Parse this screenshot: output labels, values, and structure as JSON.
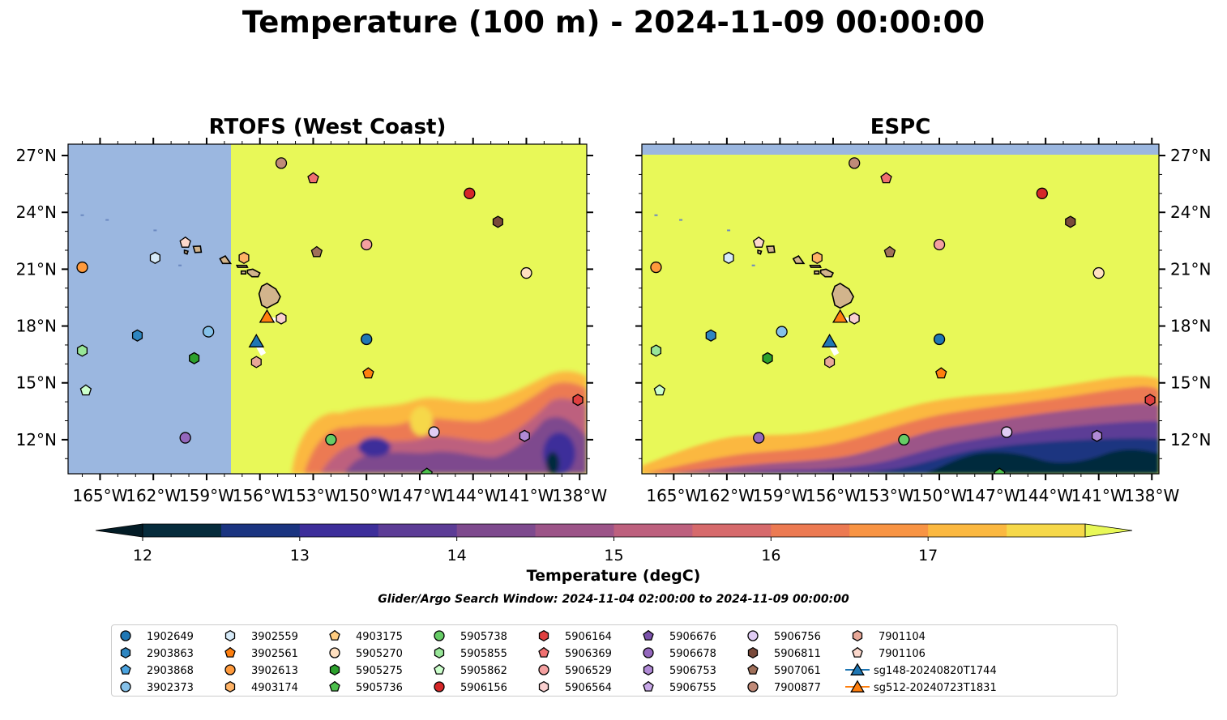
{
  "title": "Temperature (100 m) - 2024-11-09 00:00:00",
  "panels": [
    {
      "title": "RTOFS (West Coast)"
    },
    {
      "title": "ESPC"
    }
  ],
  "colors": {
    "land_mask": "#9bb7e0",
    "warm": "#e8f858",
    "island": "#d2b48c",
    "glider_track": "#ffffff"
  },
  "axes": {
    "lon_ticks": [
      -165,
      -162,
      -159,
      -156,
      -153,
      -150,
      -147,
      -144,
      -141,
      -138
    ],
    "lon_labels": [
      "165°W",
      "162°W",
      "159°W",
      "156°W",
      "153°W",
      "150°W",
      "147°W",
      "144°W",
      "141°W",
      "138°W"
    ],
    "lat_ticks": [
      12,
      15,
      18,
      21,
      24,
      27
    ],
    "lat_labels": [
      "12°N",
      "15°N",
      "18°N",
      "21°N",
      "24°N",
      "27°N"
    ],
    "lon_range": [
      -166.8,
      -137.6
    ],
    "lat_range": [
      10.2,
      27.6
    ]
  },
  "colorbar": {
    "label": "Temperature (degC)",
    "ticks": [
      "12",
      "13",
      "14",
      "15",
      "16",
      "17"
    ],
    "levels_min": 12.0,
    "levels_step": 0.5,
    "colors": [
      "#062c3c",
      "#1a3480",
      "#3d2e9a",
      "#5c3c96",
      "#7e4a8e",
      "#9c5488",
      "#bd607e",
      "#d66a6c",
      "#ec7a52",
      "#f89444",
      "#fbb840",
      "#f6d84a"
    ],
    "under": "#031c26",
    "over": "#e8f858"
  },
  "search_window": "Glider/Argo Search Window: 2024-11-04 02:00:00 to 2024-11-09 00:00:00",
  "platforms": [
    {
      "id": "1902649",
      "marker": "circle",
      "color": "#1f77b4",
      "lon": -150.0,
      "lat": 17.3
    },
    {
      "id": "2903863",
      "marker": "hexagon",
      "color": "#2e86c1",
      "lon": -162.9,
      "lat": 17.5
    },
    {
      "id": "2903868",
      "marker": "pentagon",
      "color": "#4aa3df",
      "lon": null,
      "lat": null
    },
    {
      "id": "3902373",
      "marker": "circle",
      "color": "#85c1e9",
      "lon": -158.9,
      "lat": 17.7
    },
    {
      "id": "3902559",
      "marker": "hexagon",
      "color": "#d6eaf8",
      "lon": -161.9,
      "lat": 21.6
    },
    {
      "id": "3902561",
      "marker": "pentagon",
      "color": "#ff7f0e",
      "lon": -149.9,
      "lat": 15.5
    },
    {
      "id": "3902613",
      "marker": "circle",
      "color": "#ff9a3c",
      "lon": -166.0,
      "lat": 21.1
    },
    {
      "id": "4903174",
      "marker": "hexagon",
      "color": "#ffb366",
      "lon": -156.9,
      "lat": 21.6
    },
    {
      "id": "4903175",
      "marker": "pentagon",
      "color": "#ffcc80",
      "lon": null,
      "lat": null
    },
    {
      "id": "5905270",
      "marker": "circle",
      "color": "#ffe0c0",
      "lon": -141.0,
      "lat": 20.8
    },
    {
      "id": "5905275",
      "marker": "hexagon",
      "color": "#2ca02c",
      "lon": -159.7,
      "lat": 16.3
    },
    {
      "id": "5905736",
      "marker": "pentagon",
      "color": "#4cc04c",
      "lon": -146.6,
      "lat": 10.2
    },
    {
      "id": "5905738",
      "marker": "circle",
      "color": "#66cc66",
      "lon": -152.0,
      "lat": 12.0
    },
    {
      "id": "5905855",
      "marker": "hexagon",
      "color": "#98e698",
      "lon": -166.0,
      "lat": 16.7
    },
    {
      "id": "5905862",
      "marker": "pentagon",
      "color": "#ccffcc",
      "lon": -165.8,
      "lat": 14.6
    },
    {
      "id": "5906156",
      "marker": "circle",
      "color": "#d62728",
      "lon": -144.2,
      "lat": 25.0
    },
    {
      "id": "5906164",
      "marker": "hexagon",
      "color": "#e04040",
      "lon": -138.1,
      "lat": 14.1
    },
    {
      "id": "5906369",
      "marker": "pentagon",
      "color": "#f07070",
      "lon": -153.0,
      "lat": 25.8
    },
    {
      "id": "5906529",
      "marker": "circle",
      "color": "#f4a0a0",
      "lon": -150.0,
      "lat": 22.3
    },
    {
      "id": "5906564",
      "marker": "hexagon",
      "color": "#fad0d0",
      "lon": -154.8,
      "lat": 18.4
    },
    {
      "id": "5906676",
      "marker": "pentagon",
      "color": "#7b52ab",
      "lon": null,
      "lat": null
    },
    {
      "id": "5906678",
      "marker": "circle",
      "color": "#9467bd",
      "lon": -160.2,
      "lat": 12.1
    },
    {
      "id": "5906753",
      "marker": "hexagon",
      "color": "#b08ad6",
      "lon": -141.1,
      "lat": 12.2
    },
    {
      "id": "5906755",
      "marker": "pentagon",
      "color": "#c8a8e8",
      "lon": null,
      "lat": null
    },
    {
      "id": "5906756",
      "marker": "circle",
      "color": "#e0ccf4",
      "lon": -146.2,
      "lat": 12.4
    },
    {
      "id": "5906811",
      "marker": "hexagon",
      "color": "#7a4a3a",
      "lon": -142.6,
      "lat": 23.5
    },
    {
      "id": "5907061",
      "marker": "pentagon",
      "color": "#a0705a",
      "lon": -152.8,
      "lat": 21.9
    },
    {
      "id": "7900877",
      "marker": "circle",
      "color": "#c08a78",
      "lon": -154.8,
      "lat": 26.6
    },
    {
      "id": "7901104",
      "marker": "hexagon",
      "color": "#e8a898",
      "lon": -156.2,
      "lat": 16.1
    },
    {
      "id": "7901106",
      "marker": "pentagon",
      "color": "#fcd8cc",
      "lon": -160.2,
      "lat": 22.4
    },
    {
      "id": "sg148-20240820T1744",
      "marker": "triangle",
      "color": "#1f77b4",
      "lon": -156.2,
      "lat": 17.2
    },
    {
      "id": "sg512-20240723T1831",
      "marker": "triangle",
      "color": "#ff7f0e",
      "lon": -155.6,
      "lat": 18.5
    }
  ]
}
